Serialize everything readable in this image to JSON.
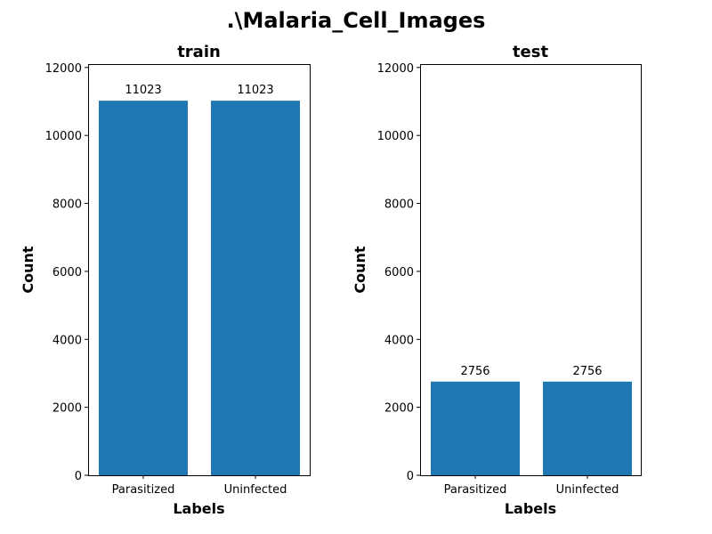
{
  "figure": {
    "title": ".\\Malaria_Cell_Images"
  },
  "chart_data": [
    {
      "type": "bar",
      "title": "train",
      "xlabel": "Labels",
      "ylabel": "Count",
      "categories": [
        "Parasitized",
        "Uninfected"
      ],
      "values": [
        11023,
        11023
      ],
      "data_labels": [
        "11023",
        "11023"
      ],
      "ylim": [
        0,
        12100
      ],
      "yticks": [
        0,
        2000,
        4000,
        6000,
        8000,
        10000,
        12000
      ],
      "ytick_labels": [
        "0",
        "2000",
        "4000",
        "6000",
        "8000",
        "10000",
        "12000"
      ],
      "bar_color": "#1f77b4",
      "grid": false,
      "legend": "none"
    },
    {
      "type": "bar",
      "title": "test",
      "xlabel": "Labels",
      "ylabel": "Count",
      "categories": [
        "Parasitized",
        "Uninfected"
      ],
      "values": [
        2756,
        2756
      ],
      "data_labels": [
        "2756",
        "2756"
      ],
      "ylim": [
        0,
        12100
      ],
      "yticks": [
        0,
        2000,
        4000,
        6000,
        8000,
        10000,
        12000
      ],
      "ytick_labels": [
        "0",
        "2000",
        "4000",
        "6000",
        "8000",
        "10000",
        "12000"
      ],
      "bar_color": "#1f77b4",
      "grid": false,
      "legend": "none"
    }
  ]
}
